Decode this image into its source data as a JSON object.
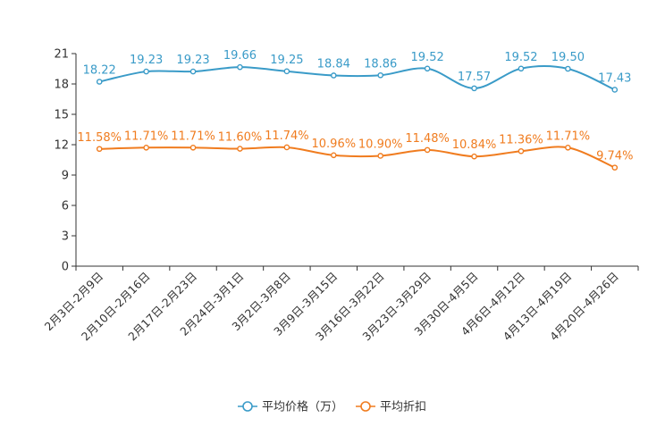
{
  "chart_data": {
    "type": "line",
    "title": "",
    "xlabel": "",
    "ylabel": "",
    "ylim": [
      0,
      21
    ],
    "yticks": [
      "0",
      "3",
      "6",
      "9",
      "12",
      "15",
      "18",
      "21"
    ],
    "categories": [
      "2月3日-2月9日",
      "2月10日-2月16日",
      "2月17日-2月23日",
      "2月24日-3月1日",
      "3月2日-3月8日",
      "3月9日-3月15日",
      "3月16日-3月22日",
      "3月23日-3月29日",
      "3月30日-4月5日",
      "4月6日-4月12日",
      "4月13日-4月19日",
      "4月20日-4月26日"
    ],
    "legend_position": "bottom",
    "series": [
      {
        "name": "平均价格（万）",
        "color": "#3a9bc8",
        "values": [
          18.22,
          19.23,
          19.23,
          19.66,
          19.25,
          18.84,
          18.86,
          19.52,
          17.57,
          19.52,
          19.5,
          17.43
        ],
        "labels": [
          "18.22",
          "19.23",
          "19.23",
          "19.66",
          "19.25",
          "18.84",
          "18.86",
          "19.52",
          "17.57",
          "19.52",
          "19.50",
          "17.43"
        ]
      },
      {
        "name": "平均折扣",
        "color": "#f07c1f",
        "values": [
          11.58,
          11.71,
          11.71,
          11.6,
          11.74,
          10.96,
          10.9,
          11.48,
          10.84,
          11.36,
          11.71,
          9.74
        ],
        "labels": [
          "11.58%",
          "11.71%",
          "11.71%",
          "11.60%",
          "11.74%",
          "10.96%",
          "10.90%",
          "11.48%",
          "10.84%",
          "11.36%",
          "11.71%",
          "9.74%"
        ]
      }
    ]
  }
}
